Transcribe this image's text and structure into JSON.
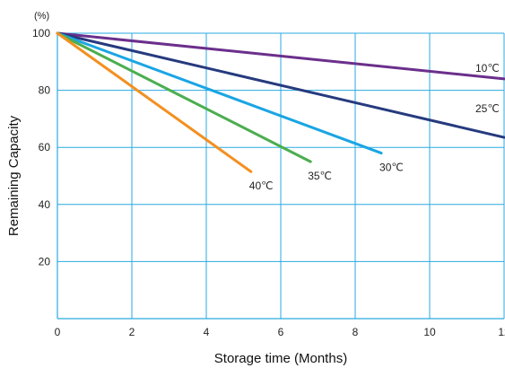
{
  "chart_data": {
    "type": "line",
    "xlabel": "Storage time (Months)",
    "ylabel": "Remaining Capacity",
    "y_unit_label": "(%)",
    "xlim": [
      0,
      12
    ],
    "ylim": [
      0,
      100
    ],
    "x_ticks": [
      0,
      2,
      4,
      6,
      8,
      10,
      12
    ],
    "y_ticks": [
      20,
      40,
      60,
      80,
      100
    ],
    "x_tick_labels": [
      "0",
      "2",
      "4",
      "6",
      "8",
      "10",
      "12"
    ],
    "y_tick_labels": [
      "20",
      "40",
      "60",
      "80",
      "100"
    ],
    "grid": true,
    "colors": {
      "grid": "#29aae1",
      "axis": "#29aae1"
    },
    "series": [
      {
        "name": "10℃",
        "color": "#6b2f8c",
        "x": [
          0,
          12
        ],
        "y": [
          100,
          84
        ]
      },
      {
        "name": "25℃",
        "color": "#263a7e",
        "x": [
          0,
          12
        ],
        "y": [
          100,
          63.5
        ]
      },
      {
        "name": "30℃",
        "color": "#1aa5e4",
        "x": [
          0,
          8.7
        ],
        "y": [
          100,
          58
        ]
      },
      {
        "name": "35℃",
        "color": "#4bae4f",
        "x": [
          0,
          6.8
        ],
        "y": [
          100,
          55
        ]
      },
      {
        "name": "40℃",
        "color": "#f39020",
        "x": [
          0,
          5.2
        ],
        "y": [
          100,
          51.5
        ]
      }
    ]
  }
}
